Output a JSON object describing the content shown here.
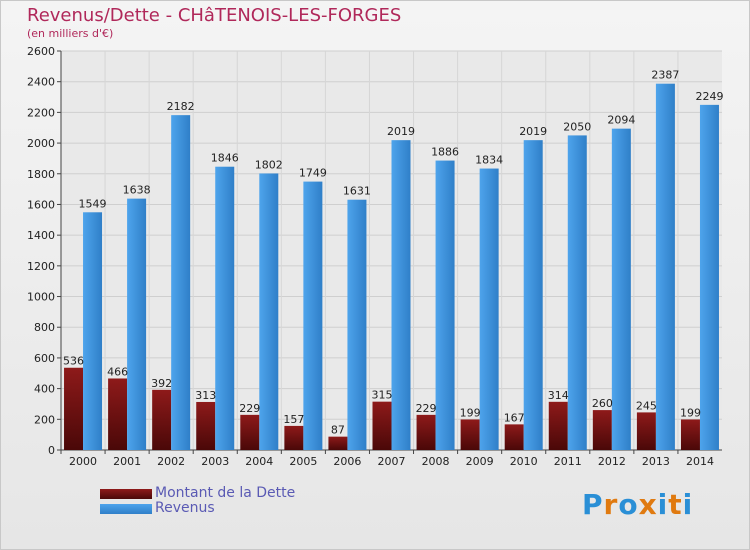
{
  "title": "Revenus/Dette - CHâTENOIS-LES-FORGES",
  "subtitle": "(en milliers d'€)",
  "colors": {
    "title": "#b0285a",
    "dette": "#7a1010",
    "revenus": "#3d8fd8",
    "legend_text": "#5a5ab4"
  },
  "legend": {
    "dette_label": "Montant de la Dette",
    "revenus_label": "Revenus"
  },
  "logo": {
    "letters": [
      "P",
      "r",
      "o",
      "x",
      "i",
      "t",
      "i"
    ],
    "letter_colors": [
      "#2a8fd6",
      "#e07a10",
      "#2a8fd6",
      "#e07a10",
      "#2a8fd6",
      "#e07a10",
      "#2a8fd6"
    ]
  },
  "chart_data": {
    "type": "bar",
    "categories": [
      "2000",
      "2001",
      "2002",
      "2003",
      "2004",
      "2005",
      "2006",
      "2007",
      "2008",
      "2009",
      "2010",
      "2011",
      "2012",
      "2013",
      "2014"
    ],
    "series": [
      {
        "name": "Montant de la Dette",
        "values": [
          536,
          466,
          392,
          313,
          229,
          157,
          87,
          315,
          229,
          199,
          167,
          314,
          260,
          245,
          199
        ]
      },
      {
        "name": "Revenus",
        "values": [
          1549,
          1638,
          2182,
          1846,
          1802,
          1749,
          1631,
          2019,
          1886,
          1834,
          2019,
          2050,
          2094,
          2387,
          2249
        ]
      }
    ],
    "y_ticks": [
      0,
      200,
      400,
      600,
      800,
      1000,
      1200,
      1400,
      1600,
      1800,
      2000,
      2200,
      2400,
      2600
    ],
    "ylim": [
      0,
      2600
    ],
    "grid": true,
    "legend_position": "bottom-left"
  }
}
